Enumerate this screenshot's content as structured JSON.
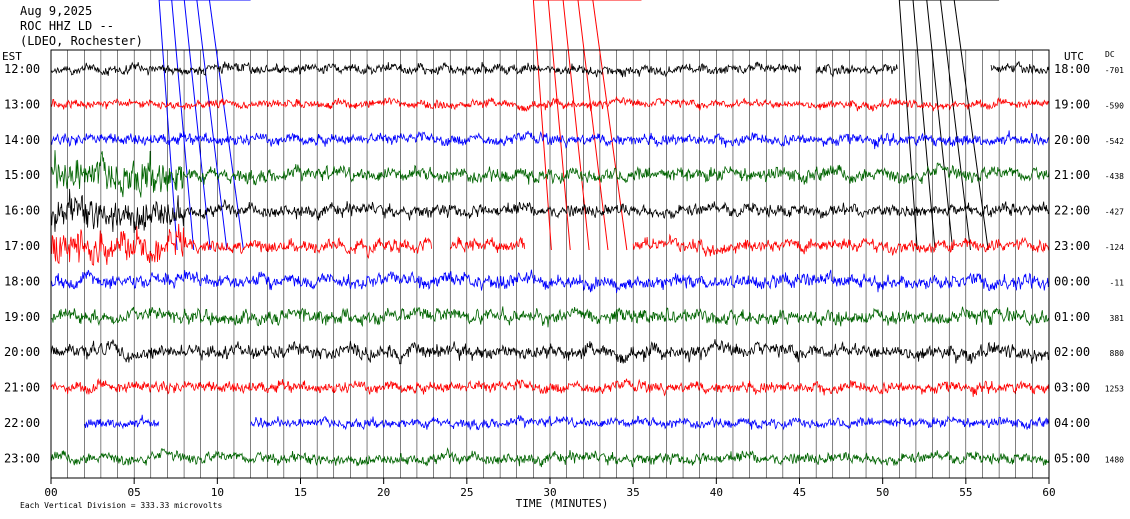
{
  "header": {
    "date": "Aug 9,2025",
    "station": "ROC HHZ LD --",
    "network": "(LDEO, Rochester)"
  },
  "left_axis_label": "EST",
  "right_axis_label": "UTC",
  "dc_label": "DC",
  "footer": {
    "note": "Each Vertical Division =  333.33 microvolts"
  },
  "colors": {
    "cycle": [
      "#000000",
      "#ff0000",
      "#0000ff",
      "#006400"
    ],
    "gridline": "#000000",
    "background": "#ffffff"
  },
  "chart_data": {
    "type": "line",
    "title": "",
    "xlabel": "TIME (MINUTES)",
    "ylabel": "",
    "xlim": [
      0,
      60
    ],
    "x_ticks": [
      "00",
      "05",
      "10",
      "15",
      "20",
      "25",
      "30",
      "35",
      "40",
      "45",
      "50",
      "55",
      "60"
    ],
    "vertical_gridlines_every_minutes": 1,
    "series": [
      {
        "est": "12:00",
        "utc": "18:00",
        "dc": "-701",
        "color_index": 0
      },
      {
        "est": "13:00",
        "utc": "19:00",
        "dc": "-590",
        "color_index": 1
      },
      {
        "est": "14:00",
        "utc": "20:00",
        "dc": "-542",
        "color_index": 2
      },
      {
        "est": "15:00",
        "utc": "21:00",
        "dc": "-438",
        "color_index": 3
      },
      {
        "est": "16:00",
        "utc": "22:00",
        "dc": "-427",
        "color_index": 0
      },
      {
        "est": "17:00",
        "utc": "23:00",
        "dc": "-124",
        "color_index": 1
      },
      {
        "est": "18:00",
        "utc": "00:00",
        "dc": "-11",
        "color_index": 2
      },
      {
        "est": "19:00",
        "utc": "01:00",
        "dc": "381",
        "color_index": 3
      },
      {
        "est": "20:00",
        "utc": "02:00",
        "dc": "880",
        "color_index": 0
      },
      {
        "est": "21:00",
        "utc": "03:00",
        "dc": "1253",
        "color_index": 1
      },
      {
        "est": "22:00",
        "utc": "04:00",
        "dc": "",
        "color_index": 2
      },
      {
        "est": "23:00",
        "utc": "05:00",
        "dc": "1480",
        "color_index": 3
      }
    ],
    "gaps_minutes": [
      {
        "row": 0,
        "from": 45.1,
        "to": 46.0
      },
      {
        "row": 0,
        "from": 50.9,
        "to": 56.5
      },
      {
        "row": 5,
        "from": 22.9,
        "to": 24.0
      },
      {
        "row": 5,
        "from": 28.5,
        "to": 35.0
      },
      {
        "row": 10,
        "from": 0.0,
        "to": 2.0
      },
      {
        "row": 10,
        "from": 6.5,
        "to": 12.0
      }
    ],
    "event_markers": [
      {
        "color_index": 2,
        "start_minute": 6.5,
        "end_minute": 12.0,
        "count": 5
      },
      {
        "color_index": 1,
        "start_minute": 29.0,
        "end_minute": 35.5,
        "count": 5
      },
      {
        "color_index": 0,
        "start_minute": 51.0,
        "end_minute": 57.0,
        "count": 5
      }
    ]
  }
}
